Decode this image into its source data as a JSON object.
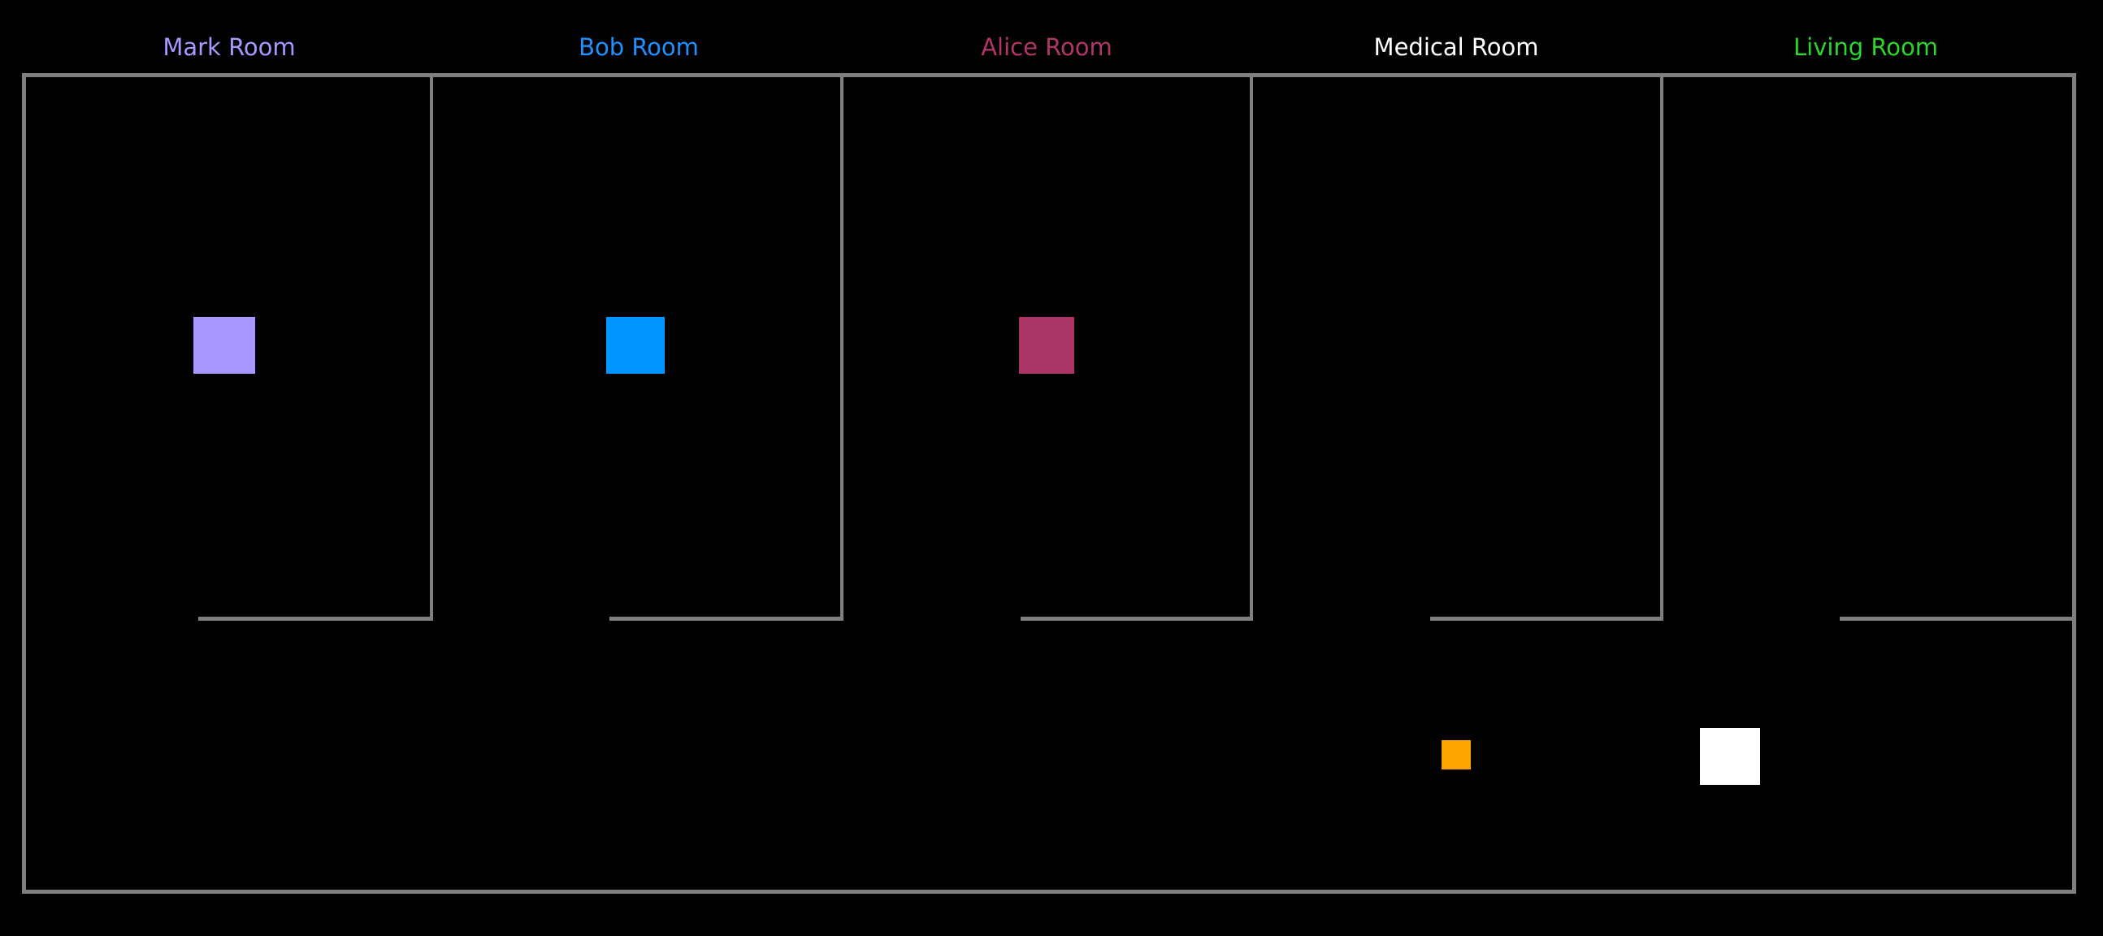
{
  "rooms": [
    {
      "name": "Mark Room",
      "label_color": "#a797ff"
    },
    {
      "name": "Bob Room",
      "label_color": "#1e90ff"
    },
    {
      "name": "Alice Room",
      "label_color": "#b0366a"
    },
    {
      "name": "Medical Room",
      "label_color": "#ffffff"
    },
    {
      "name": "Living Room",
      "label_color": "#2bd52b"
    }
  ],
  "wall_color": "#7f7f7f",
  "background_color": "#000000",
  "tokens": {
    "mark": {
      "color": "#a797ff",
      "location": "Mark Room"
    },
    "bob": {
      "color": "#0095ff",
      "location": "Bob Room"
    },
    "alice": {
      "color": "#ab3466",
      "location": "Alice Room"
    },
    "medical": {
      "color": "#ffa500",
      "location": "hallway"
    },
    "living": {
      "color": "#ffffff",
      "location": "hallway"
    }
  }
}
